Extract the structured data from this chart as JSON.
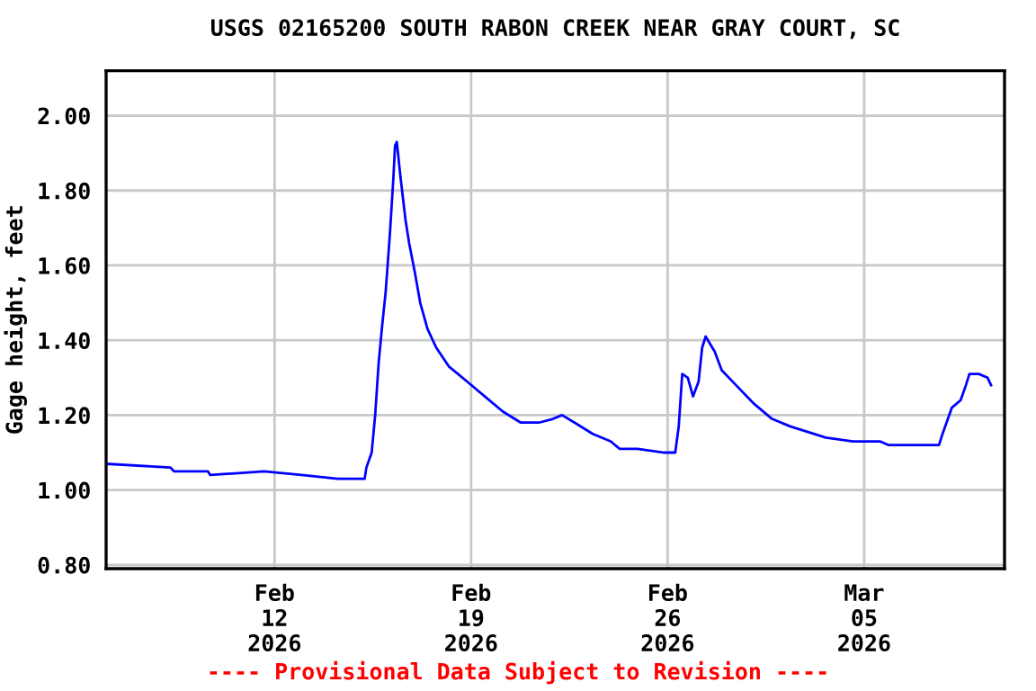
{
  "chart_data": {
    "type": "line",
    "title": "USGS 02165200 SOUTH RABON CREEK NEAR GRAY COURT, SC",
    "ylabel": "Gage height, feet",
    "annotations": [
      "---- Provisional Data Subject to Revision ----"
    ],
    "x": [
      "2026-02-06T00:00",
      "2026-02-08T07:00",
      "2026-02-08T10:00",
      "2026-02-09T15:00",
      "2026-02-09T17:00",
      "2026-02-11T15:00",
      "2026-02-12T23:00",
      "2026-02-14T06:00",
      "2026-02-15T05:00",
      "2026-02-15T06:30",
      "2026-02-15T11:00",
      "2026-02-15T14:00",
      "2026-02-15T17:00",
      "2026-02-15T20:00",
      "2026-02-15T23:00",
      "2026-02-16T02:30",
      "2026-02-16T05:30",
      "2026-02-16T07:00",
      "2026-02-16T08:30",
      "2026-02-16T11:30",
      "2026-02-16T16:00",
      "2026-02-16T19:00",
      "2026-02-17T00:00",
      "2026-02-17T04:30",
      "2026-02-17T10:45",
      "2026-02-17T18:15",
      "2026-02-18T05:00",
      "2026-02-18T20:30",
      "2026-02-19T11:45",
      "2026-02-20T03:00",
      "2026-02-20T18:30",
      "2026-02-21T10:00",
      "2026-02-21T22:00",
      "2026-02-22T05:45",
      "2026-02-22T16:30",
      "2026-02-23T08:00",
      "2026-02-23T23:15",
      "2026-02-24T07:00",
      "2026-02-24T22:15",
      "2026-02-25T21:15",
      "2026-02-26T06:30",
      "2026-02-26T09:30",
      "2026-02-26T12:30",
      "2026-02-26T17:15",
      "2026-02-26T21:45",
      "2026-02-27T02:30",
      "2026-02-27T05:30",
      "2026-02-27T08:30",
      "2026-02-27T16:15",
      "2026-02-27T22:15",
      "2026-02-28T10:30",
      "2026-03-01T02:00",
      "2026-03-01T17:15",
      "2026-03-02T08:45",
      "2026-03-03T15:15",
      "2026-03-04T14:30",
      "2026-03-05T13:30",
      "2026-03-05T21:00",
      "2026-03-07T16:00",
      "2026-03-07T19:00",
      "2026-03-08T03:00",
      "2026-03-08T10:30",
      "2026-03-08T15:00",
      "2026-03-08T18:00",
      "2026-03-09T02:00",
      "2026-03-09T09:30",
      "2026-03-09T12:30"
    ],
    "series": [
      {
        "color": "#0000ff",
        "values": [
          1.07,
          1.06,
          1.05,
          1.05,
          1.04,
          1.05,
          1.04,
          1.03,
          1.03,
          1.06,
          1.1,
          1.2,
          1.34,
          1.44,
          1.53,
          1.68,
          1.83,
          1.92,
          1.93,
          1.84,
          1.72,
          1.66,
          1.58,
          1.5,
          1.43,
          1.38,
          1.33,
          1.29,
          1.25,
          1.21,
          1.18,
          1.18,
          1.19,
          1.2,
          1.18,
          1.15,
          1.13,
          1.11,
          1.11,
          1.1,
          1.1,
          1.17,
          1.31,
          1.3,
          1.25,
          1.29,
          1.38,
          1.41,
          1.37,
          1.32,
          1.28,
          1.23,
          1.19,
          1.17,
          1.14,
          1.13,
          1.13,
          1.12,
          1.12,
          1.15,
          1.22,
          1.24,
          1.28,
          1.31,
          1.31,
          1.3,
          1.28
        ]
      }
    ],
    "xlim": [
      "2026-02-06",
      "2026-03-10"
    ],
    "xticks": [
      {
        "value": "2026-02-12",
        "label": "Feb\n12\n2026"
      },
      {
        "value": "2026-02-19",
        "label": "Feb\n19\n2026"
      },
      {
        "value": "2026-02-26",
        "label": "Feb\n26\n2026"
      },
      {
        "value": "2026-03-05",
        "label": "Mar\n05\n2026"
      }
    ],
    "ylim": [
      0.79,
      2.12
    ],
    "yticks": [
      {
        "value": 0.8,
        "label": "0.80"
      },
      {
        "value": 1.0,
        "label": "1.00"
      },
      {
        "value": 1.2,
        "label": "1.20"
      },
      {
        "value": 1.4,
        "label": "1.40"
      },
      {
        "value": 1.6,
        "label": "1.60"
      },
      {
        "value": 1.8,
        "label": "1.80"
      },
      {
        "value": 2.0,
        "label": "2.00"
      }
    ],
    "grid": true,
    "legend": false
  }
}
